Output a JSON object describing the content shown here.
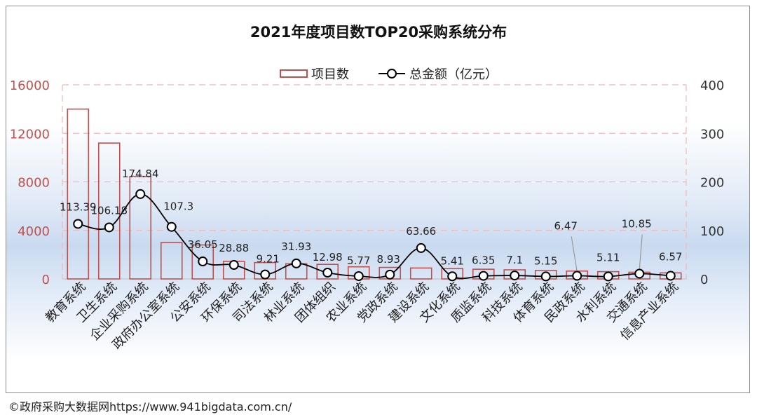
{
  "footer": {
    "credit": "©政府采购大数据网https://www.941bigdata.com.cn/"
  },
  "chart_data": {
    "type": "bar",
    "title": "2021年度项目数TOP20采购系统分布",
    "legend": {
      "placement": "top",
      "items": [
        "项目数",
        "总金额（亿元）"
      ]
    },
    "categories": [
      "教育系统",
      "卫生系统",
      "企业采购系统",
      "政府办公室系统",
      "公安系统",
      "环保系统",
      "司法系统",
      "林业系统",
      "团体组织",
      "农业系统",
      "党政系统",
      "建设系统",
      "文化系统",
      "质监系统",
      "科技系统",
      "体育系统",
      "民政系统",
      "水利系统",
      "交通系统",
      "信息产业系统"
    ],
    "series": [
      {
        "name": "项目数",
        "type": "bar",
        "axis": "left",
        "values": [
          14000,
          11200,
          8450,
          3000,
          2800,
          1450,
          1350,
          1250,
          1200,
          1000,
          950,
          900,
          850,
          800,
          750,
          700,
          650,
          600,
          550,
          500
        ],
        "color": "#c0504d"
      },
      {
        "name": "总金额（亿元）",
        "type": "line",
        "axis": "right",
        "values": [
          113.39,
          106.18,
          174.84,
          107.3,
          36.05,
          28.88,
          9.21,
          31.93,
          12.98,
          5.77,
          8.93,
          63.66,
          5.41,
          6.35,
          7.1,
          5.15,
          6.47,
          5.11,
          10.85,
          6.57
        ],
        "labels": [
          "113.39",
          "106.18",
          "174.84",
          "107.3",
          "36.05",
          "28.88",
          "9.21",
          "31.93",
          "12.98",
          "5.77",
          "8.93",
          "63.66",
          "5.41",
          "6.35",
          "7.1",
          "5.15",
          "6.47",
          "5.11",
          "10.85",
          "6.57"
        ],
        "color": "#000000"
      }
    ],
    "y_left": {
      "min": 0,
      "max": 16000,
      "ticks": [
        "0",
        "4000",
        "8000",
        "12000",
        "16000"
      ],
      "color": "#c0504d"
    },
    "y_right": {
      "min": 0,
      "max": 400,
      "ticks": [
        "0",
        "100",
        "200",
        "300",
        "400"
      ],
      "color": "#333333"
    },
    "grid": true
  }
}
